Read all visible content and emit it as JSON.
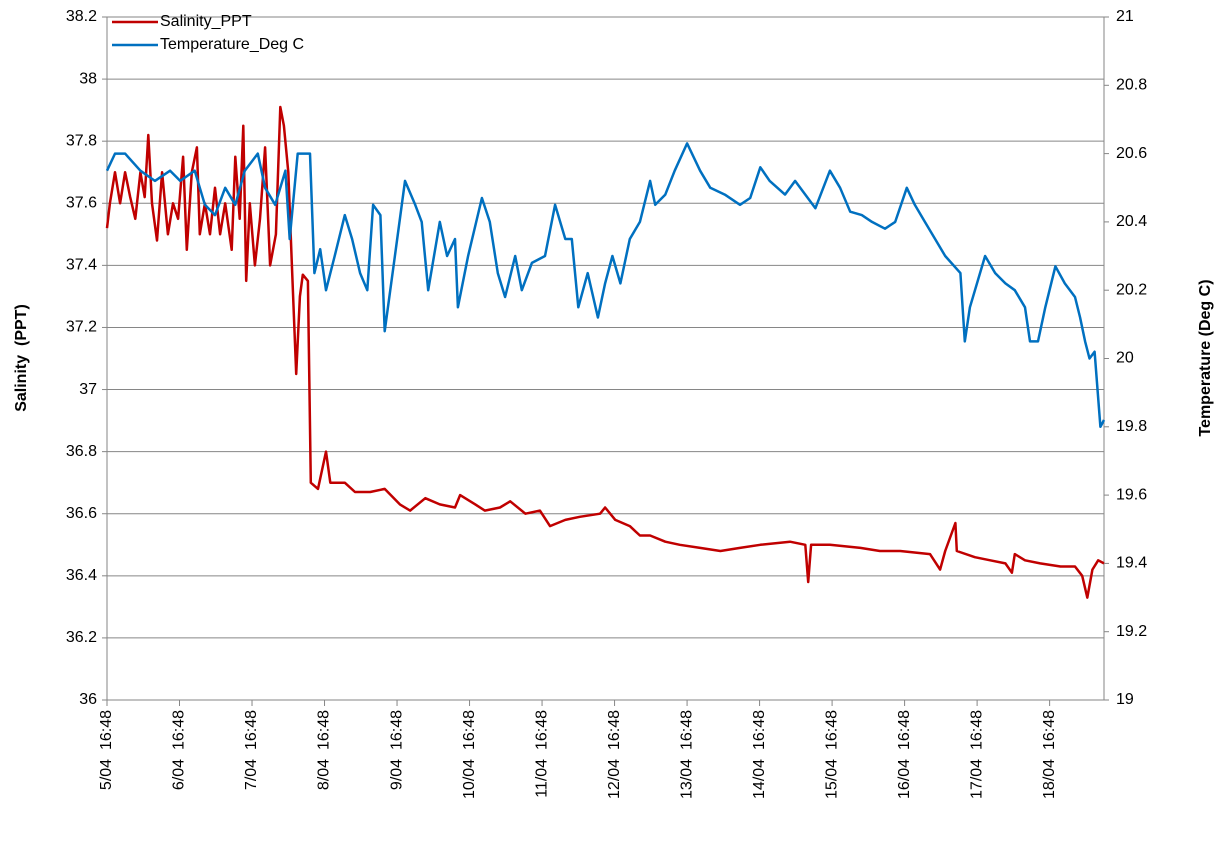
{
  "chart_data": {
    "type": "line",
    "ylabel": "Salinity  (PPT)",
    "y2label": "Temperature (Deg C)",
    "ylim": [
      36,
      38.2
    ],
    "yticks": [
      36,
      36.2,
      36.4,
      36.6,
      36.8,
      37,
      37.2,
      37.4,
      37.6,
      37.8,
      38,
      38.2
    ],
    "y2lim": [
      19,
      21
    ],
    "y2ticks": [
      19,
      19.2,
      19.4,
      19.6,
      19.8,
      20,
      20.2,
      20.4,
      20.6,
      20.8,
      21
    ],
    "xlim": [
      0,
      13.75
    ],
    "xticks": [
      {
        "value": 0,
        "label": "5/04  16:48"
      },
      {
        "value": 1,
        "label": "6/04  16:48"
      },
      {
        "value": 2,
        "label": "7/04  16:48"
      },
      {
        "value": 3,
        "label": "8/04  16:48"
      },
      {
        "value": 4,
        "label": "9/04  16:48"
      },
      {
        "value": 5,
        "label": "10/04  16:48"
      },
      {
        "value": 6,
        "label": "11/04  16:48"
      },
      {
        "value": 7,
        "label": "12/04  16:48"
      },
      {
        "value": 8,
        "label": "13/04  16:48"
      },
      {
        "value": 9,
        "label": "14/04  16:48"
      },
      {
        "value": 10,
        "label": "15/04  16:48"
      },
      {
        "value": 11,
        "label": "16/04  16:48"
      },
      {
        "value": 12,
        "label": "17/04  16:48"
      },
      {
        "value": 13,
        "label": "18/04  16:48"
      }
    ],
    "grid": true,
    "legend": "top-left",
    "series": [
      {
        "name": "Salinity_PPT",
        "color": "#c00000",
        "x": [
          0,
          0.04,
          0.11,
          0.18,
          0.25,
          0.32,
          0.39,
          0.46,
          0.52,
          0.57,
          0.62,
          0.69,
          0.76,
          0.84,
          0.91,
          0.98,
          1.05,
          1.1,
          1.17,
          1.24,
          1.28,
          1.35,
          1.42,
          1.49,
          1.56,
          1.63,
          1.72,
          1.77,
          1.83,
          1.88,
          1.92,
          1.97,
          2.04,
          2.11,
          2.18,
          2.25,
          2.33,
          2.39,
          2.44,
          2.5,
          2.55,
          2.61,
          2.66,
          2.7,
          2.77,
          2.81,
          2.91,
          3.02,
          3.08,
          3.28,
          3.42,
          3.63,
          3.83,
          4.04,
          4.18,
          4.39,
          4.59,
          4.8,
          4.87,
          5.08,
          5.21,
          5.42,
          5.56,
          5.77,
          5.97,
          6.11,
          6.32,
          6.52,
          6.8,
          6.87,
          7.01,
          7.21,
          7.35,
          7.49,
          7.7,
          7.9,
          8.18,
          8.46,
          8.73,
          9.01,
          9.42,
          9.63,
          9.67,
          9.71,
          9.97,
          10.39,
          10.66,
          10.94,
          11.35,
          11.49,
          11.56,
          11.7,
          11.72,
          11.97,
          12.18,
          12.39,
          12.48,
          12.52,
          12.66,
          12.87,
          13.15,
          13.35,
          13.45,
          13.52,
          13.59,
          13.67,
          13.75
        ],
        "values": [
          37.52,
          37.6,
          37.7,
          37.6,
          37.7,
          37.62,
          37.55,
          37.7,
          37.62,
          37.82,
          37.6,
          37.48,
          37.7,
          37.5,
          37.6,
          37.55,
          37.75,
          37.45,
          37.7,
          37.78,
          37.5,
          37.6,
          37.5,
          37.65,
          37.5,
          37.6,
          37.45,
          37.75,
          37.55,
          37.85,
          37.35,
          37.6,
          37.4,
          37.55,
          37.78,
          37.4,
          37.5,
          37.91,
          37.85,
          37.7,
          37.4,
          37.05,
          37.3,
          37.37,
          37.35,
          36.7,
          36.68,
          36.8,
          36.7,
          36.7,
          36.67,
          36.67,
          36.68,
          36.63,
          36.61,
          36.65,
          36.63,
          36.62,
          36.66,
          36.63,
          36.61,
          36.62,
          36.64,
          36.6,
          36.61,
          36.56,
          36.58,
          36.59,
          36.6,
          36.62,
          36.58,
          36.56,
          36.53,
          36.53,
          36.51,
          36.5,
          36.49,
          36.48,
          36.49,
          36.5,
          36.51,
          36.5,
          36.38,
          36.5,
          36.5,
          36.49,
          36.48,
          36.48,
          36.47,
          36.42,
          36.48,
          36.57,
          36.48,
          36.46,
          36.45,
          36.44,
          36.41,
          36.47,
          36.45,
          36.44,
          36.43,
          36.43,
          36.4,
          36.33,
          36.42,
          36.45,
          36.44
        ]
      },
      {
        "name": "Temperature_Deg C",
        "color": "#0070c0",
        "axis": "y2",
        "x": [
          0,
          0.11,
          0.25,
          0.46,
          0.66,
          0.87,
          1.01,
          1.21,
          1.35,
          1.49,
          1.63,
          1.77,
          1.9,
          2.08,
          2.18,
          2.32,
          2.46,
          2.52,
          2.63,
          2.8,
          2.86,
          2.94,
          3.02,
          3.14,
          3.28,
          3.38,
          3.49,
          3.59,
          3.67,
          3.77,
          3.83,
          3.97,
          4.11,
          4.25,
          4.34,
          4.43,
          4.59,
          4.69,
          4.8,
          4.84,
          4.98,
          5.17,
          5.28,
          5.39,
          5.49,
          5.63,
          5.72,
          5.86,
          6.04,
          6.18,
          6.32,
          6.41,
          6.5,
          6.63,
          6.77,
          6.87,
          6.97,
          7.08,
          7.21,
          7.35,
          7.49,
          7.56,
          7.7,
          7.83,
          8.0,
          8.18,
          8.32,
          8.52,
          8.73,
          8.87,
          9.01,
          9.14,
          9.35,
          9.49,
          9.63,
          9.77,
          9.97,
          10.11,
          10.25,
          10.41,
          10.55,
          10.73,
          10.87,
          11.03,
          11.14,
          11.28,
          11.42,
          11.56,
          11.77,
          11.83,
          11.9,
          12.11,
          12.25,
          12.39,
          12.52,
          12.66,
          12.73,
          12.84,
          12.94,
          13.08,
          13.21,
          13.35,
          13.42,
          13.49,
          13.55,
          13.62,
          13.7,
          13.75
        ],
        "values": [
          20.55,
          20.6,
          20.6,
          20.55,
          20.52,
          20.55,
          20.52,
          20.55,
          20.45,
          20.42,
          20.5,
          20.45,
          20.55,
          20.6,
          20.5,
          20.45,
          20.55,
          20.35,
          20.6,
          20.6,
          20.25,
          20.32,
          20.2,
          20.3,
          20.42,
          20.35,
          20.25,
          20.2,
          20.45,
          20.42,
          20.08,
          20.3,
          20.52,
          20.45,
          20.4,
          20.2,
          20.4,
          20.3,
          20.35,
          20.15,
          20.3,
          20.47,
          20.4,
          20.25,
          20.18,
          20.3,
          20.2,
          20.28,
          20.3,
          20.45,
          20.35,
          20.35,
          20.15,
          20.25,
          20.12,
          20.22,
          20.3,
          20.22,
          20.35,
          20.4,
          20.52,
          20.45,
          20.48,
          20.55,
          20.63,
          20.55,
          20.5,
          20.48,
          20.45,
          20.47,
          20.56,
          20.52,
          20.48,
          20.52,
          20.48,
          20.44,
          20.55,
          20.5,
          20.43,
          20.42,
          20.4,
          20.38,
          20.4,
          20.5,
          20.45,
          20.4,
          20.35,
          20.3,
          20.25,
          20.05,
          20.15,
          20.3,
          20.25,
          20.22,
          20.2,
          20.15,
          20.05,
          20.05,
          20.15,
          20.27,
          20.22,
          20.18,
          20.12,
          20.05,
          20.0,
          20.02,
          19.8,
          19.82
        ]
      }
    ]
  }
}
